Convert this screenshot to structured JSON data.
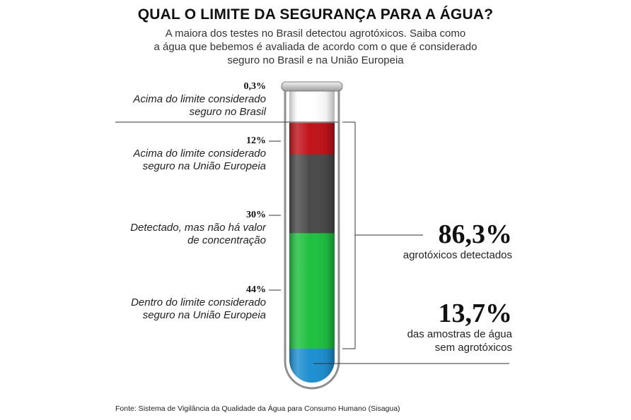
{
  "header": {
    "title": "QUAL O LIMITE DA SEGURANÇA PARA A ÁGUA?",
    "subtitle_lines": [
      "A maiora dos testes no Brasil detectou agrotóxicos. Saiba como",
      "a água que bebemos é avaliada de acordo com o que é considerado",
      "seguro no Brasil e na União Europeia"
    ]
  },
  "chart_data": {
    "type": "bar",
    "stacked": true,
    "unit": "%",
    "segments": [
      {
        "value": 0.3,
        "label": "0,3%",
        "description": [
          "Acima do limite considerado",
          "seguro no Brasil"
        ],
        "color": "#e8e8e8"
      },
      {
        "value": 12,
        "label": "12%",
        "description": [
          "Acima do limite considerado",
          "seguro na União Europeia"
        ],
        "color": "#c0141a"
      },
      {
        "value": 30,
        "label": "30%",
        "description": [
          "Detectado, mas não há valor",
          "de concentração"
        ],
        "color": "#4a4a4a"
      },
      {
        "value": 44,
        "label": "44%",
        "description": [
          "Dentro do limite considerado",
          "seguro na União Europeia"
        ],
        "color": "#1ec040"
      },
      {
        "value": 13.7,
        "label": "13,7%",
        "description": [
          "das amostras de água",
          "sem agrotóxicos"
        ],
        "color": "#1e8fd0"
      }
    ],
    "totals": [
      {
        "value": 86.3,
        "label": "86,3%",
        "caption": [
          "agrotóxicos detectados"
        ]
      },
      {
        "value": 13.7,
        "label": "13,7%",
        "caption": [
          "das amostras de água",
          "sem agrotóxicos"
        ]
      }
    ]
  },
  "source": "Fonte: Sistema de Vigilância da Qualidade da Água para Consumo Humano (Sisagua)"
}
